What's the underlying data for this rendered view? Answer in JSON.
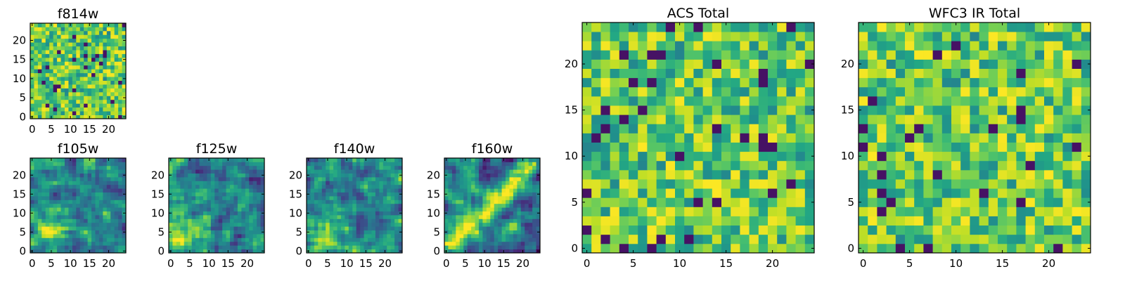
{
  "chart_data": [
    {
      "type": "heatmap",
      "title": "f814w",
      "xlim": [
        -0.5,
        24.5
      ],
      "ylim": [
        -0.5,
        24.5
      ],
      "xticks": [
        0,
        5,
        10,
        15,
        20
      ],
      "yticks": [
        0,
        5,
        10,
        15,
        20
      ],
      "grid_size": 25,
      "colormap": "viridis",
      "texture": "noise",
      "seed": 11
    },
    {
      "type": "heatmap",
      "title": "f105w",
      "xlim": [
        -0.5,
        24.5
      ],
      "ylim": [
        -0.5,
        24.5
      ],
      "xticks": [
        0,
        5,
        10,
        15,
        20
      ],
      "yticks": [
        0,
        5,
        10,
        15,
        20
      ],
      "grid_size": 25,
      "colormap": "viridis",
      "texture": "smooth-bright-left",
      "seed": 23
    },
    {
      "type": "heatmap",
      "title": "f125w",
      "xlim": [
        -0.5,
        24.5
      ],
      "ylim": [
        -0.5,
        24.5
      ],
      "xticks": [
        0,
        5,
        10,
        15,
        20
      ],
      "yticks": [
        0,
        5,
        10,
        15,
        20
      ],
      "grid_size": 25,
      "colormap": "viridis",
      "texture": "smooth-bright-bottom-left",
      "seed": 37
    },
    {
      "type": "heatmap",
      "title": "f140w",
      "xlim": [
        -0.5,
        24.5
      ],
      "ylim": [
        -0.5,
        24.5
      ],
      "xticks": [
        0,
        5,
        10,
        15,
        20
      ],
      "yticks": [
        0,
        5,
        10,
        15,
        20
      ],
      "grid_size": 25,
      "colormap": "viridis",
      "texture": "smooth-bright-bottom-left",
      "seed": 41
    },
    {
      "type": "heatmap",
      "title": "f160w",
      "xlim": [
        -0.5,
        24.5
      ],
      "ylim": [
        -0.5,
        24.5
      ],
      "xticks": [
        0,
        5,
        10,
        15,
        20
      ],
      "yticks": [
        0,
        5,
        10,
        15,
        20
      ],
      "grid_size": 25,
      "colormap": "viridis",
      "texture": "diagonal-band",
      "seed": 53
    },
    {
      "type": "heatmap",
      "title": "ACS Total",
      "xlim": [
        -0.5,
        24.5
      ],
      "ylim": [
        -0.5,
        24.5
      ],
      "xticks": [
        0,
        5,
        10,
        15,
        20
      ],
      "yticks": [
        0,
        5,
        10,
        15,
        20
      ],
      "grid_size": 25,
      "colormap": "viridis",
      "texture": "noise",
      "seed": 67
    },
    {
      "type": "heatmap",
      "title": "WFC3 IR Total",
      "xlim": [
        -0.5,
        24.5
      ],
      "ylim": [
        -0.5,
        24.5
      ],
      "xticks": [
        0,
        5,
        10,
        15,
        20
      ],
      "yticks": [
        0,
        5,
        10,
        15,
        20
      ],
      "grid_size": 25,
      "colormap": "viridis",
      "texture": "noise",
      "seed": 79
    }
  ]
}
